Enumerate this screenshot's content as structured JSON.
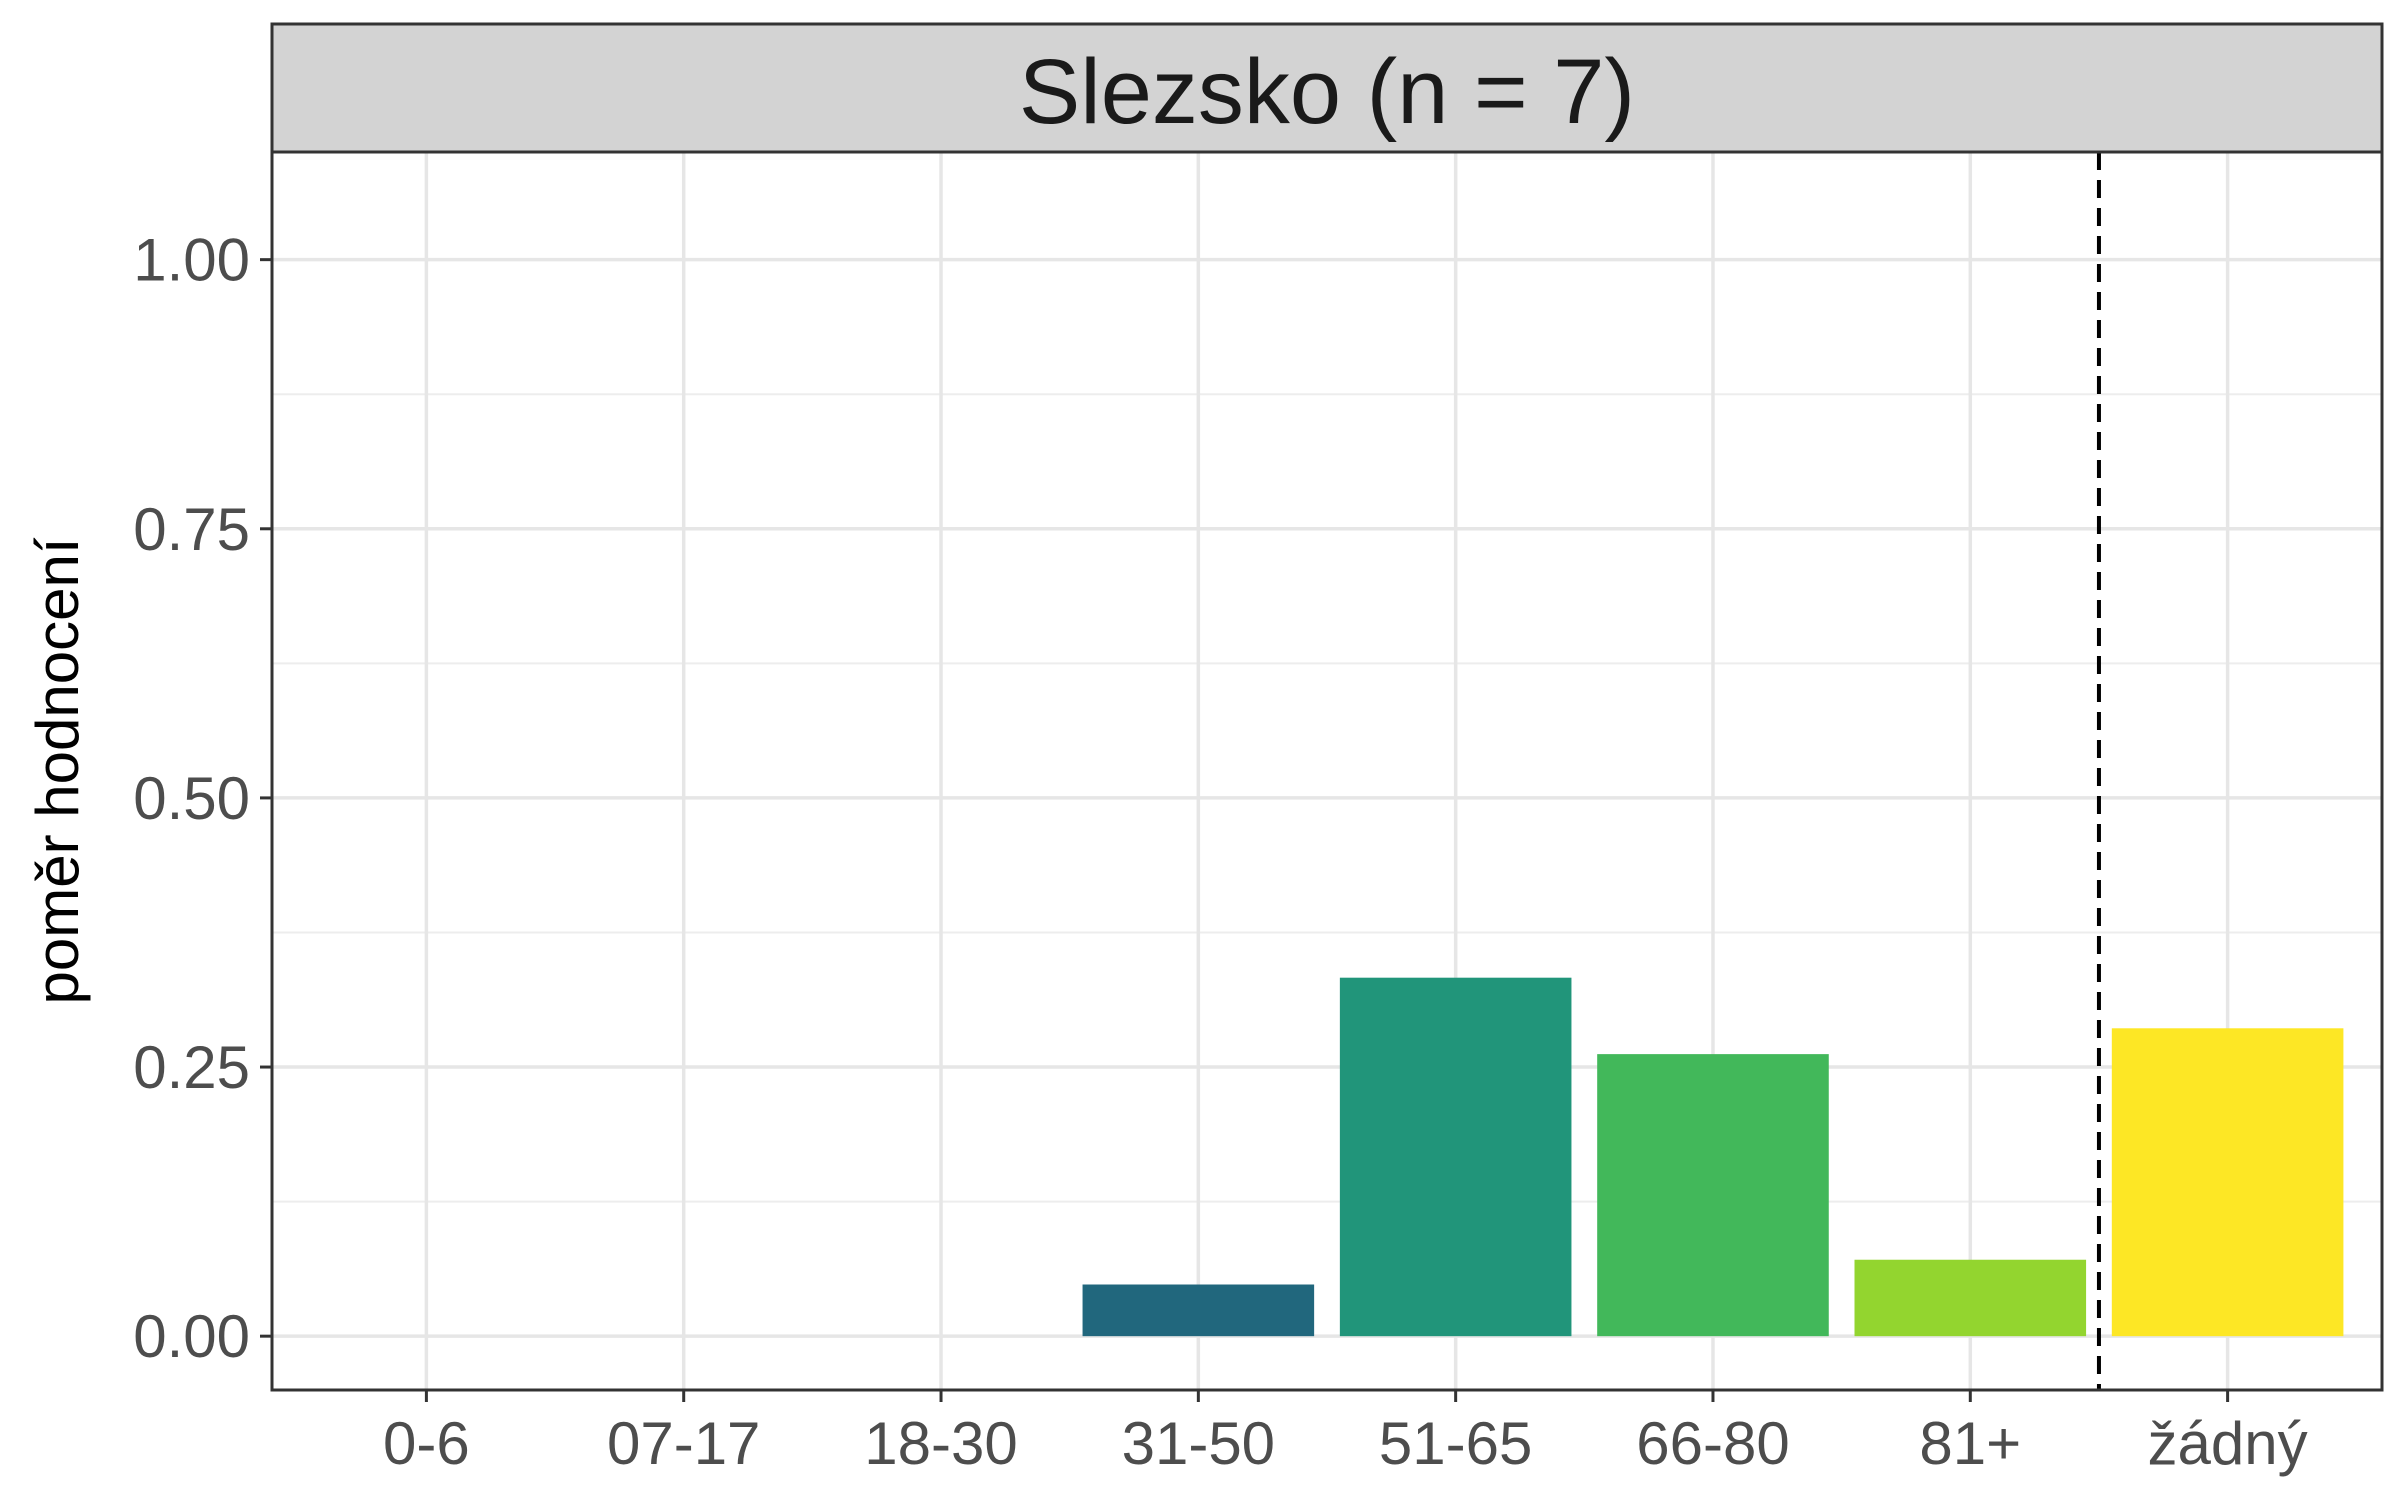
{
  "chart_data": {
    "type": "bar",
    "title": "Slezsko (n = 7)",
    "xlabel": "",
    "ylabel": "poměr hodnocení",
    "categories": [
      "0-6",
      "07-17",
      "18-30",
      "31-50",
      "51-65",
      "66-80",
      "81+",
      "žádný"
    ],
    "values": [
      0,
      0,
      0,
      0.048,
      0.333,
      0.262,
      0.071,
      0.286
    ],
    "colors": [
      "#440154",
      "#46337E",
      "#365C8D",
      "#21677D",
      "#21957A",
      "#42B85A",
      "#93D52F",
      "#FDE725"
    ],
    "ylim": [
      -0.05,
      1.1
    ],
    "yticks": [
      0.0,
      0.25,
      0.5,
      0.75,
      1.0
    ],
    "ytick_labels": [
      "0.00",
      "0.25",
      "0.50",
      "0.75",
      "1.00"
    ],
    "separator_after_category": "81+",
    "separator_style": "dashed",
    "grid": true,
    "legend": "none"
  }
}
